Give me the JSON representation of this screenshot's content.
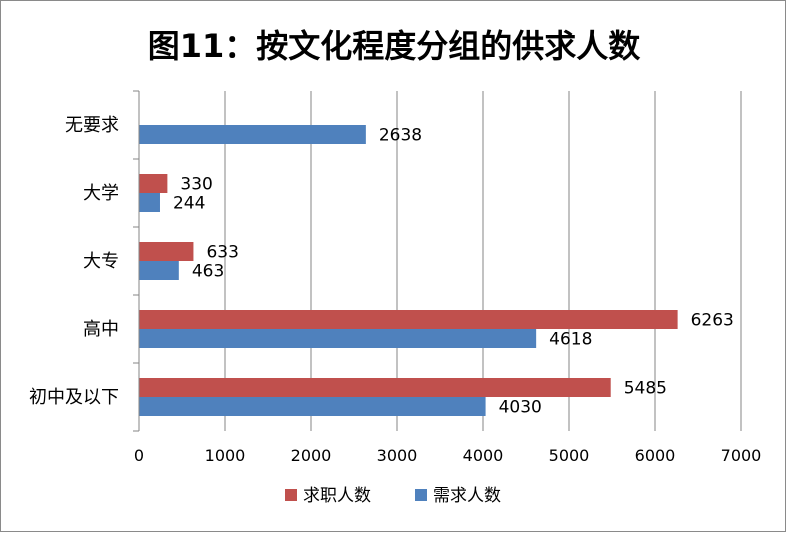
{
  "chart_data": {
    "type": "bar",
    "orientation": "horizontal",
    "title": "图11：按文化程度分组的供求人数",
    "categories": [
      "无要求",
      "大学",
      "大专",
      "高中",
      "初中及以下"
    ],
    "series": [
      {
        "name": "求职人数",
        "color": "#C0504D",
        "values": [
          null,
          330,
          633,
          6263,
          5485
        ]
      },
      {
        "name": "需求人数",
        "color": "#4F81BD",
        "values": [
          2638,
          244,
          463,
          4618,
          4030
        ]
      }
    ],
    "xlim": [
      0,
      7000
    ],
    "xticks": [
      0,
      1000,
      2000,
      3000,
      4000,
      5000,
      6000,
      7000
    ],
    "grid": "vertical",
    "legend_position": "bottom"
  }
}
